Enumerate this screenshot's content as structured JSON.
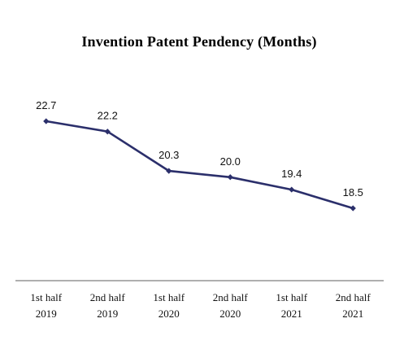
{
  "chart_data": {
    "type": "line",
    "title": "Invention Patent Pendency (Months)",
    "categories": [
      [
        "1st half",
        "2019"
      ],
      [
        "2nd half",
        "2019"
      ],
      [
        "1st half",
        "2020"
      ],
      [
        "2nd half",
        "2020"
      ],
      [
        "1st half",
        "2021"
      ],
      [
        "2nd half",
        "2021"
      ]
    ],
    "values": [
      22.7,
      22.2,
      20.3,
      20.0,
      19.4,
      18.5
    ],
    "data_labels": [
      "22.7",
      "22.2",
      "20.3",
      "20.0",
      "19.4",
      "18.5"
    ],
    "xlabel": "",
    "ylabel": "",
    "y_axis_visible": false,
    "grid": false,
    "legend": "none",
    "colors": {
      "line": "#2b2f6b",
      "axis": "#7f7f7f"
    }
  }
}
